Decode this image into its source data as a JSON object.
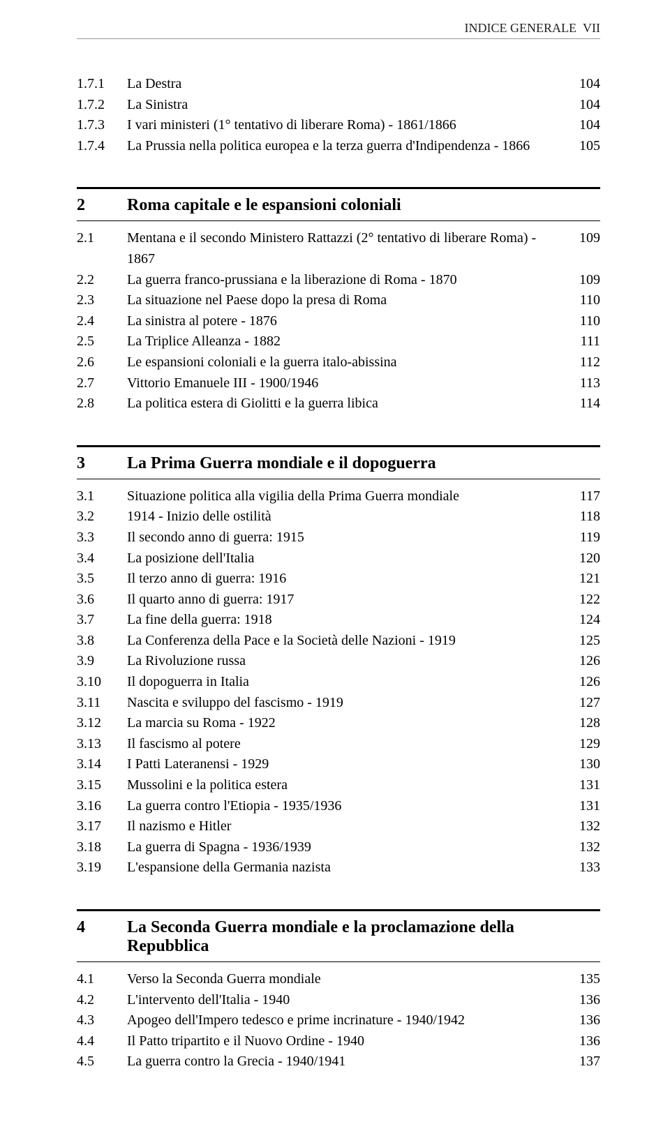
{
  "header": {
    "text": "INDICE GENERALE",
    "page_label": "VII"
  },
  "pre_entries": [
    {
      "num": "1.7.1",
      "title": "La Destra",
      "page": "104"
    },
    {
      "num": "1.7.2",
      "title": "La Sinistra",
      "page": "104"
    },
    {
      "num": "1.7.3",
      "title": "I vari ministeri (1° tentativo di liberare Roma) - 1861/1866",
      "page": "104"
    },
    {
      "num": "1.7.4",
      "title": "La Prussia nella politica europea e la terza guerra d'Indipendenza - 1866",
      "page": "105"
    }
  ],
  "sections": [
    {
      "num": "2",
      "title": "Roma capitale e le espansioni coloniali",
      "entries": [
        {
          "num": "2.1",
          "title": "Mentana e il secondo Ministero Rattazzi (2° tentativo di liberare Roma) - 1867",
          "page": "109"
        },
        {
          "num": "2.2",
          "title": "La guerra franco-prussiana e la liberazione di Roma - 1870",
          "page": "109"
        },
        {
          "num": "2.3",
          "title": "La situazione nel Paese dopo la presa di Roma",
          "page": "110"
        },
        {
          "num": "2.4",
          "title": "La sinistra al potere - 1876",
          "page": "110"
        },
        {
          "num": "2.5",
          "title": "La Triplice Alleanza - 1882",
          "page": "111"
        },
        {
          "num": "2.6",
          "title": "Le espansioni coloniali e la guerra italo-abissina",
          "page": "112"
        },
        {
          "num": "2.7",
          "title": "Vittorio Emanuele III - 1900/1946",
          "page": "113"
        },
        {
          "num": "2.8",
          "title": "La politica estera di Giolitti e la guerra libica",
          "page": "114"
        }
      ]
    },
    {
      "num": "3",
      "title": "La Prima Guerra mondiale e il dopoguerra",
      "entries": [
        {
          "num": "3.1",
          "title": "Situazione politica alla vigilia della Prima Guerra mondiale",
          "page": "117"
        },
        {
          "num": "3.2",
          "title": "1914 - Inizio delle ostilità",
          "page": "118"
        },
        {
          "num": "3.3",
          "title": "Il secondo anno di guerra: 1915",
          "page": "119"
        },
        {
          "num": "3.4",
          "title": "La posizione dell'Italia",
          "page": "120"
        },
        {
          "num": "3.5",
          "title": "Il terzo anno di guerra: 1916",
          "page": "121"
        },
        {
          "num": "3.6",
          "title": "Il quarto anno di guerra: 1917",
          "page": "122"
        },
        {
          "num": "3.7",
          "title": "La fine della guerra: 1918",
          "page": "124"
        },
        {
          "num": "3.8",
          "title": "La Conferenza della Pace e la Società delle Nazioni - 1919",
          "page": "125"
        },
        {
          "num": "3.9",
          "title": "La Rivoluzione russa",
          "page": "126"
        },
        {
          "num": "3.10",
          "title": "Il dopoguerra in Italia",
          "page": "126"
        },
        {
          "num": "3.11",
          "title": "Nascita e sviluppo del fascismo - 1919",
          "page": "127"
        },
        {
          "num": "3.12",
          "title": "La marcia su Roma - 1922",
          "page": "128"
        },
        {
          "num": "3.13",
          "title": "Il fascismo al potere",
          "page": "129"
        },
        {
          "num": "3.14",
          "title": "I Patti Lateranensi - 1929",
          "page": "130"
        },
        {
          "num": "3.15",
          "title": "Mussolini e la politica estera",
          "page": "131"
        },
        {
          "num": "3.16",
          "title": "La guerra contro l'Etiopia - 1935/1936",
          "page": "131"
        },
        {
          "num": "3.17",
          "title": "Il nazismo e Hitler",
          "page": "132"
        },
        {
          "num": "3.18",
          "title": "La guerra di Spagna - 1936/1939",
          "page": "132"
        },
        {
          "num": "3.19",
          "title": "L'espansione della Germania nazista",
          "page": "133"
        }
      ]
    },
    {
      "num": "4",
      "title": "La Seconda Guerra mondiale e la proclamazione della Repubblica",
      "entries": [
        {
          "num": "4.1",
          "title": "Verso la Seconda Guerra mondiale",
          "page": "135"
        },
        {
          "num": "4.2",
          "title": "L'intervento dell'Italia - 1940",
          "page": "136"
        },
        {
          "num": "4.3",
          "title": "Apogeo dell'Impero tedesco e prime incrinature - 1940/1942",
          "page": "136"
        },
        {
          "num": "4.4",
          "title": "Il Patto tripartito e il Nuovo Ordine - 1940",
          "page": "136"
        },
        {
          "num": "4.5",
          "title": "La guerra contro la Grecia - 1940/1941",
          "page": "137"
        }
      ]
    }
  ]
}
